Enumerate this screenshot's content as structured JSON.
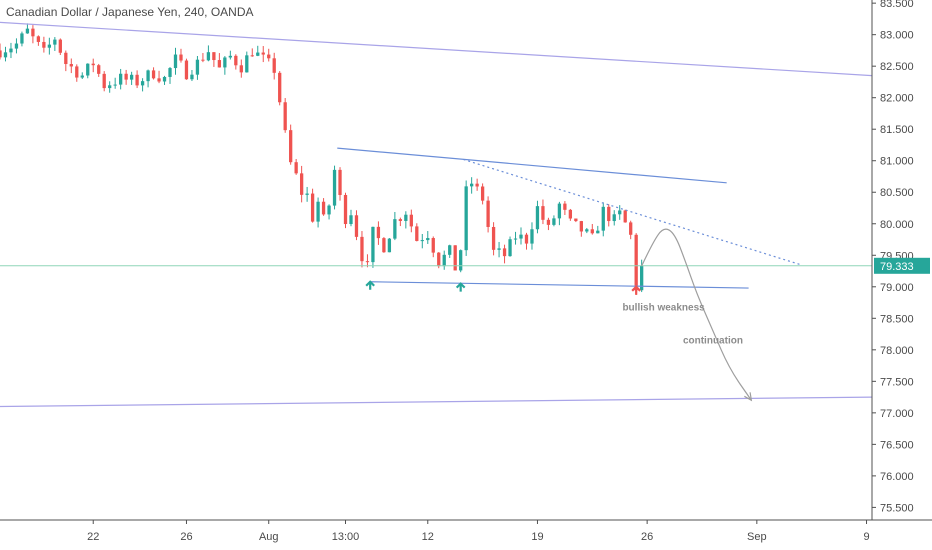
{
  "title": "Canadian Dollar / Japanese Yen, 240, OANDA",
  "colors": {
    "up": "#26a69a",
    "down": "#ef5350",
    "trendline": "#6b8ed8",
    "long_trend": "#a9a4e8",
    "price_line": "#8fd6b8",
    "price_badge": "#26a69a",
    "annotation": "#9e9e9e"
  },
  "chart_data": {
    "type": "candlestick",
    "symbol": "CADJPY",
    "interval": "240",
    "source": "OANDA",
    "last_price": 79.333,
    "last_price_label": "79.333",
    "ylim": [
      75.3,
      83.55
    ],
    "yticks": [
      75.5,
      76.0,
      76.5,
      77.0,
      77.5,
      78.0,
      78.5,
      79.0,
      79.5,
      80.0,
      80.5,
      81.0,
      81.5,
      82.0,
      82.5,
      83.0,
      83.5
    ],
    "ytick_labels": [
      "75.500",
      "76.000",
      "76.500",
      "77.000",
      "77.500",
      "78.000",
      "78.500",
      "79.000",
      "79.500",
      "80.000",
      "80.500",
      "81.000",
      "81.500",
      "82.000",
      "82.500",
      "83.000",
      "83.500"
    ],
    "xlim": [
      0,
      159
    ],
    "xticks": [
      {
        "label": "22",
        "bar": 17
      },
      {
        "label": "26",
        "bar": 34
      },
      {
        "label": "Aug",
        "bar": 49
      },
      {
        "label": "13:00",
        "bar": 63
      },
      {
        "label": "12",
        "bar": 78
      },
      {
        "label": "19",
        "bar": 98
      },
      {
        "label": "26",
        "bar": 118
      },
      {
        "label": "Sep",
        "bar": 138
      },
      {
        "label": "9",
        "bar": 158
      }
    ],
    "close_path": [
      [
        0,
        82.75
      ],
      [
        3,
        82.85
      ],
      [
        5,
        83.05
      ],
      [
        8,
        82.7
      ],
      [
        10,
        82.95
      ],
      [
        12,
        82.55
      ],
      [
        15,
        82.35
      ],
      [
        17,
        82.55
      ],
      [
        19,
        82.2
      ],
      [
        22,
        82.3
      ],
      [
        25,
        82.25
      ],
      [
        28,
        82.4
      ],
      [
        30,
        82.3
      ],
      [
        32,
        82.6
      ],
      [
        34,
        82.4
      ],
      [
        36,
        82.55
      ],
      [
        38,
        82.75
      ],
      [
        40,
        82.45
      ],
      [
        42,
        82.65
      ],
      [
        44,
        82.5
      ],
      [
        46,
        82.75
      ],
      [
        48,
        82.6
      ],
      [
        50,
        82.45
      ],
      [
        51,
        81.95
      ],
      [
        52,
        81.4
      ],
      [
        53,
        80.95
      ],
      [
        54,
        80.75
      ],
      [
        55,
        80.5
      ],
      [
        56,
        80.45
      ],
      [
        57,
        80.1
      ],
      [
        58,
        80.35
      ],
      [
        59,
        80.05
      ],
      [
        60,
        80.3
      ],
      [
        61,
        80.85
      ],
      [
        62,
        80.4
      ],
      [
        63,
        80.1
      ],
      [
        64,
        80.2
      ],
      [
        65,
        79.85
      ],
      [
        66,
        79.5
      ],
      [
        67,
        79.3
      ],
      [
        68,
        79.85
      ],
      [
        70,
        79.65
      ],
      [
        72,
        80.05
      ],
      [
        74,
        80.2
      ],
      [
        76,
        79.75
      ],
      [
        78,
        79.85
      ],
      [
        80,
        79.4
      ],
      [
        82,
        79.55
      ],
      [
        83,
        79.3
      ],
      [
        84,
        79.6
      ],
      [
        85,
        80.5
      ],
      [
        86,
        80.65
      ],
      [
        88,
        80.4
      ],
      [
        89,
        79.95
      ],
      [
        90,
        79.55
      ],
      [
        92,
        79.5
      ],
      [
        94,
        79.8
      ],
      [
        96,
        79.75
      ],
      [
        98,
        80.25
      ],
      [
        100,
        79.9
      ],
      [
        102,
        80.3
      ],
      [
        104,
        80.0
      ],
      [
        106,
        79.9
      ],
      [
        108,
        79.75
      ],
      [
        110,
        80.2
      ],
      [
        112,
        80.05
      ],
      [
        113,
        80.15
      ],
      [
        114,
        80.0
      ],
      [
        115,
        79.8
      ],
      [
        116,
        79.0
      ],
      [
        117,
        79.33
      ]
    ],
    "trendlines": [
      {
        "name": "long-upper",
        "style": "solid",
        "points": [
          [
            -1,
            83.2
          ],
          [
            159,
            82.35
          ]
        ]
      },
      {
        "name": "long-lower",
        "style": "solid",
        "points": [
          [
            -1,
            77.1
          ],
          [
            159,
            77.25
          ]
        ]
      },
      {
        "name": "channel-upper",
        "style": "solid",
        "points": [
          [
            61.5,
            81.2
          ],
          [
            132.5,
            80.65
          ]
        ]
      },
      {
        "name": "channel-lower",
        "style": "solid",
        "points": [
          [
            67.5,
            79.08
          ],
          [
            136.5,
            78.98
          ]
        ]
      },
      {
        "name": "dotted-upper",
        "style": "dotted",
        "points": [
          [
            84.5,
            81.02
          ],
          [
            146,
            79.35
          ]
        ]
      }
    ],
    "projection": {
      "points": [
        [
          117,
          79.33
        ],
        [
          119,
          79.7
        ],
        [
          121,
          79.95
        ],
        [
          123,
          79.85
        ],
        [
          125,
          79.4
        ],
        [
          127,
          78.9
        ],
        [
          130,
          78.3
        ],
        [
          133,
          77.7
        ],
        [
          137,
          77.2
        ]
      ],
      "label": "continuation",
      "label_at": [
        130,
        78.1
      ]
    },
    "markers": [
      {
        "type": "arrow-up",
        "color": "up",
        "bar": 67.5,
        "price": 79.08
      },
      {
        "type": "arrow-up",
        "color": "up",
        "bar": 84,
        "price": 79.05
      },
      {
        "type": "arrow-up",
        "color": "down",
        "bar": 116,
        "price": 79.0
      }
    ],
    "annotations": [
      {
        "text": "bullish weakness",
        "bar": 121,
        "price": 78.62
      }
    ]
  }
}
